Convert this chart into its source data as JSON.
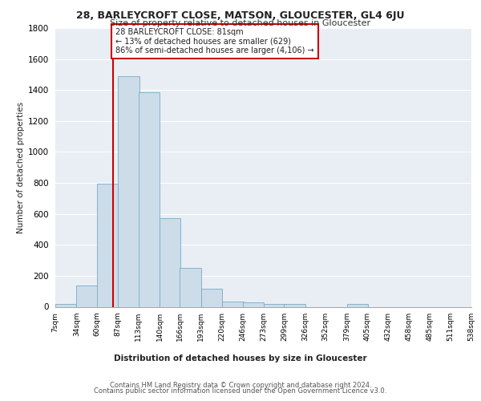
{
  "title": "28, BARLEYCROFT CLOSE, MATSON, GLOUCESTER, GL4 6JU",
  "subtitle": "Size of property relative to detached houses in Gloucester",
  "xlabel": "Distribution of detached houses by size in Gloucester",
  "ylabel": "Number of detached properties",
  "bar_color": "#ccdce8",
  "bar_edge_color": "#7aaac8",
  "background_color": "#e8eef4",
  "grid_color": "#ffffff",
  "bins": [
    7,
    34,
    60,
    87,
    113,
    140,
    166,
    193,
    220,
    246,
    273,
    299,
    326,
    352,
    379,
    405,
    432,
    458,
    485,
    511,
    538
  ],
  "bin_labels": [
    "7sqm",
    "34sqm",
    "60sqm",
    "87sqm",
    "113sqm",
    "140sqm",
    "166sqm",
    "193sqm",
    "220sqm",
    "246sqm",
    "273sqm",
    "299sqm",
    "326sqm",
    "352sqm",
    "379sqm",
    "405sqm",
    "432sqm",
    "458sqm",
    "485sqm",
    "511sqm",
    "538sqm"
  ],
  "heights": [
    20,
    135,
    795,
    1490,
    1385,
    570,
    250,
    118,
    35,
    30,
    20,
    18,
    0,
    0,
    20,
    0,
    0,
    0,
    0,
    0
  ],
  "property_size": 81,
  "red_line_x": 81,
  "annotation_text": "28 BARLEYCROFT CLOSE: 81sqm\n← 13% of detached houses are smaller (629)\n86% of semi-detached houses are larger (4,106) →",
  "annotation_box_color": "#ffffff",
  "annotation_border_color": "#cc0000",
  "ylim": [
    0,
    1800
  ],
  "yticks": [
    0,
    200,
    400,
    600,
    800,
    1000,
    1200,
    1400,
    1600,
    1800
  ],
  "footer_line1": "Contains HM Land Registry data © Crown copyright and database right 2024.",
  "footer_line2": "Contains public sector information licensed under the Open Government Licence v3.0."
}
